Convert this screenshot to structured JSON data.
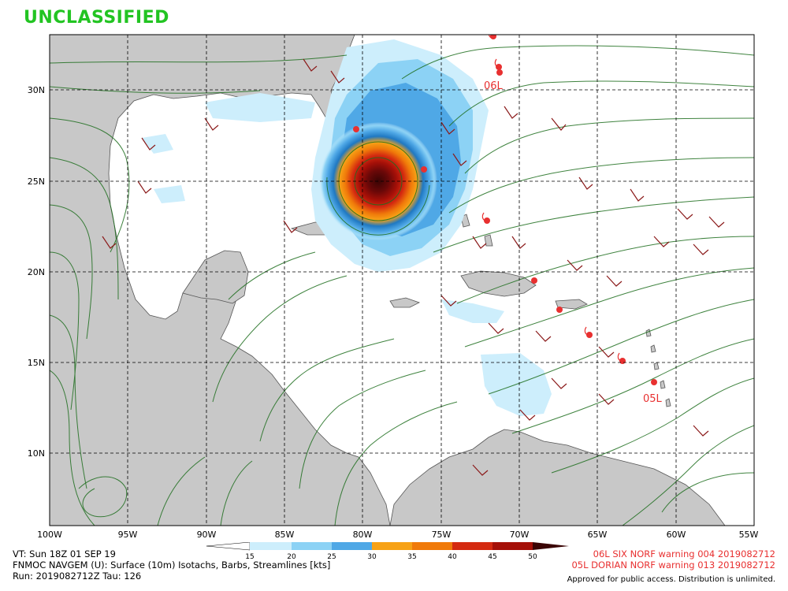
{
  "classification": "UNCLASSIFIED",
  "map": {
    "lon_labels": [
      "100W",
      "95W",
      "90W",
      "85W",
      "80W",
      "75W",
      "70W",
      "65W",
      "60W",
      "55W"
    ],
    "lat_labels": [
      "30N",
      "25N",
      "20N",
      "15N",
      "10N"
    ],
    "colors": {
      "land": "#c8c8c8",
      "water": "#ffffff",
      "streamline": "#1e6e1e",
      "barb": "#8b1a1a",
      "grid": "#000000"
    },
    "storm_labels": [
      {
        "id": "06L",
        "text": "06L"
      },
      {
        "id": "05L",
        "text": "05L"
      }
    ]
  },
  "legend": {
    "ticks": [
      "15",
      "20",
      "25",
      "30",
      "35",
      "40",
      "45",
      "50"
    ],
    "colors": [
      "#cdeefc",
      "#8cd2f5",
      "#4fa8e6",
      "#1f78c2",
      "#f7a216",
      "#f07a0a",
      "#d42a10",
      "#a51008",
      "#6a0808"
    ]
  },
  "info": {
    "vt": "VT: Sun 18Z 01 SEP 19",
    "model": "FNMOC NAVGEM (U): Surface (10m) Isotachs, Barbs, Streamlines [kts]",
    "run": "Run: 2019082712Z Tau: 126",
    "warn1": "06L SIX NORF warning 004 2019082712",
    "warn2": "05L DORIAN NORF warning 013 2019082712",
    "approval": "Approved for public access. Distribution is unlimited."
  }
}
